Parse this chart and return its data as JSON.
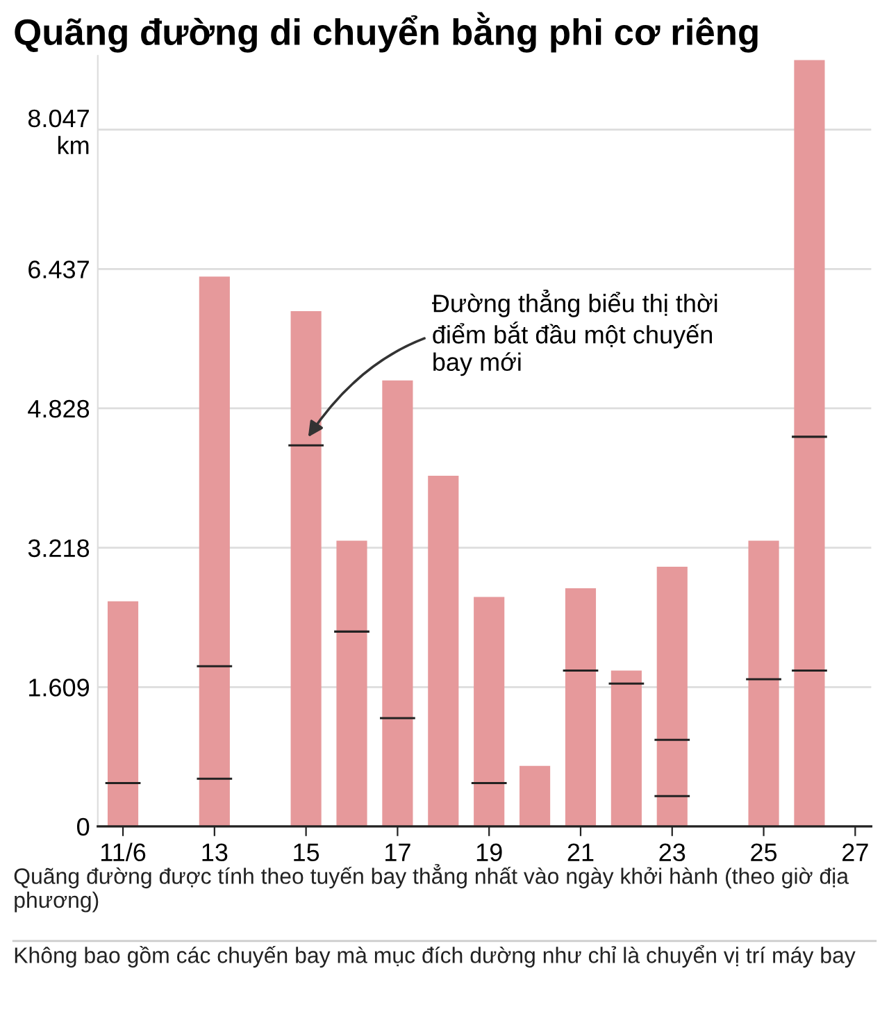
{
  "chart_data": {
    "type": "bar",
    "stacked": true,
    "title": "Quãng đường di chuyển bằng phi cơ riêng",
    "categories": [
      "11/6",
      null,
      "13",
      null,
      "15",
      null,
      "17",
      null,
      "19",
      null,
      "21",
      null,
      "23",
      null,
      "25",
      null,
      "27"
    ],
    "series": [
      {
        "color": "#e6999b",
        "values": [
          500,
          null,
          550,
          null,
          4400,
          2250,
          1250,
          4050,
          500,
          700,
          1800,
          1650,
          350,
          null,
          1700,
          1800,
          null
        ]
      },
      {
        "color": "#e6999b",
        "values": [
          2100,
          null,
          1300,
          null,
          1550,
          1050,
          3900,
          null,
          2150,
          null,
          950,
          150,
          650,
          null,
          1600,
          2700,
          null
        ]
      },
      {
        "color": "#e6999b",
        "values": [
          null,
          null,
          4500,
          null,
          null,
          null,
          null,
          null,
          null,
          null,
          null,
          null,
          2000,
          null,
          null,
          4350,
          null
        ]
      }
    ],
    "ylim": [
      0,
      8900
    ],
    "yticks": [
      0,
      {
        "value": 1609,
        "label": "1.609"
      },
      {
        "value": 3218,
        "label": "3.218"
      },
      {
        "value": 4828,
        "label": "4.828"
      },
      {
        "value": 6437,
        "label": "6.437"
      },
      {
        "value": 8047,
        "label": "8.047\nkm"
      }
    ],
    "grid": "y",
    "annotations": [
      {
        "text": "Đường thẳng biểu thị thời\nđiểm bắt đầu một chuyến\nbay mới",
        "x": "15",
        "y": 4400
      },
      "Quãng đường được tính theo tuyến bay thẳng nhất vào ngày khởi hành (theo giờ địa phương)",
      "Không bao gồm các chuyến bay mà mục đích dường như chỉ là chuyển vị trí máy bay"
    ]
  }
}
